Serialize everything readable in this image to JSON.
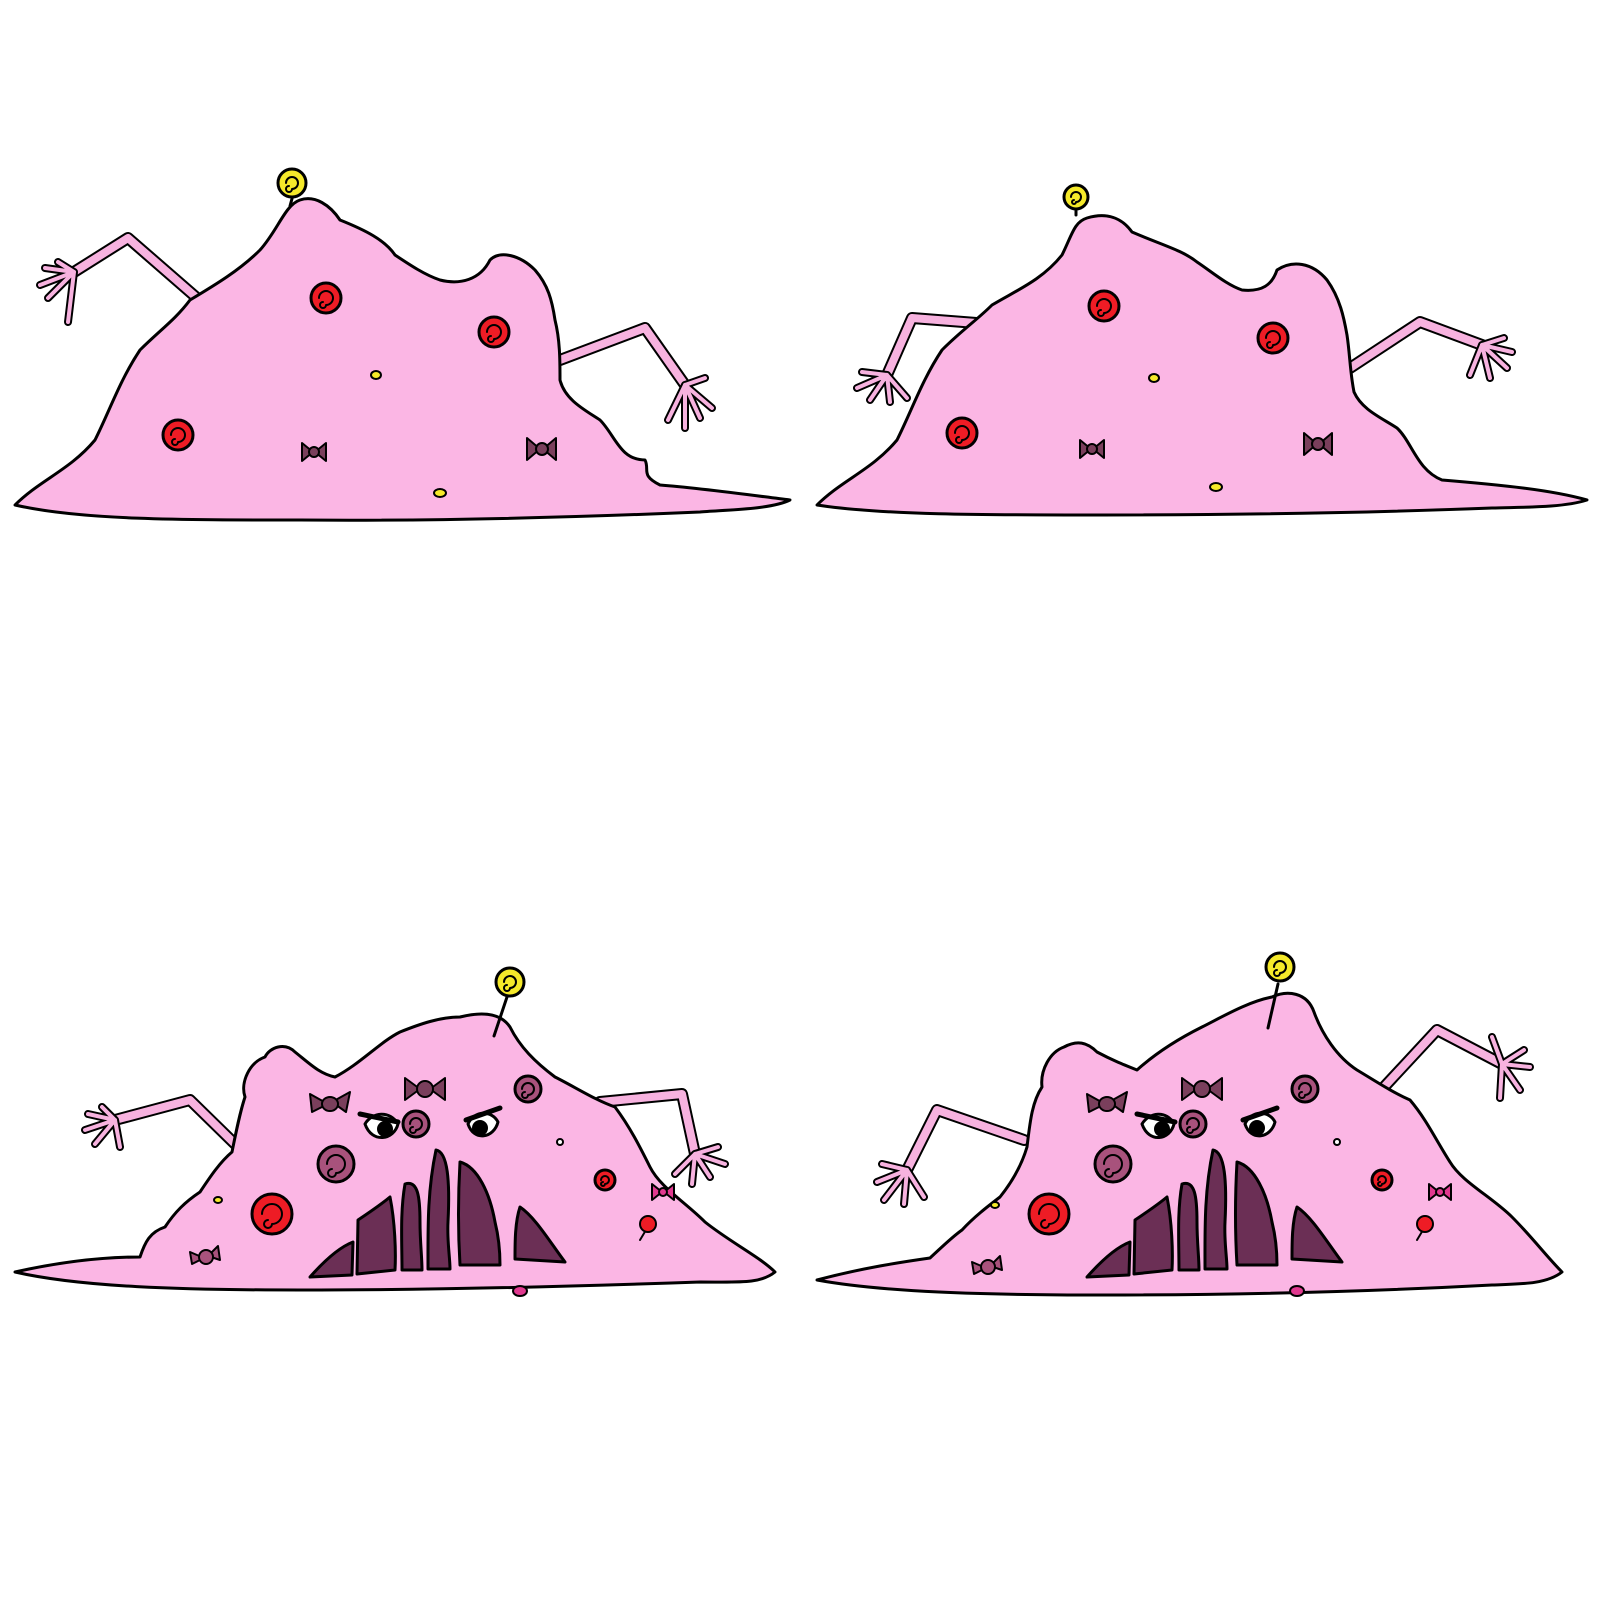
{
  "sheet": {
    "frames": [
      {
        "id": "frame-1",
        "pose": "idle",
        "face": false,
        "mirror": false
      },
      {
        "id": "frame-2",
        "pose": "idle-arms-alt",
        "face": false,
        "mirror": false
      },
      {
        "id": "frame-3",
        "pose": "angry",
        "face": true,
        "mirror": false
      },
      {
        "id": "frame-4",
        "pose": "angry-arms-alt",
        "face": true,
        "mirror": false
      }
    ]
  },
  "colors": {
    "body": "#fbb6e4",
    "arm": "#f7b2df",
    "outline": "#000000",
    "red_candy": "#ee1c25",
    "yellow_candy": "#f5e92a",
    "bow_candy": "#7a3f5c",
    "swirl_candy": "#a8527c",
    "pink_bow": "#e0398f",
    "mouth": "#6b2f55",
    "eye_white": "#ffffff"
  },
  "icons": {
    "antenna": "lollipop-swirl-icon",
    "red": "red-swirl-candy-icon",
    "yellow": "yellow-dot-candy-icon",
    "bow": "bow-wrapped-candy-icon"
  }
}
